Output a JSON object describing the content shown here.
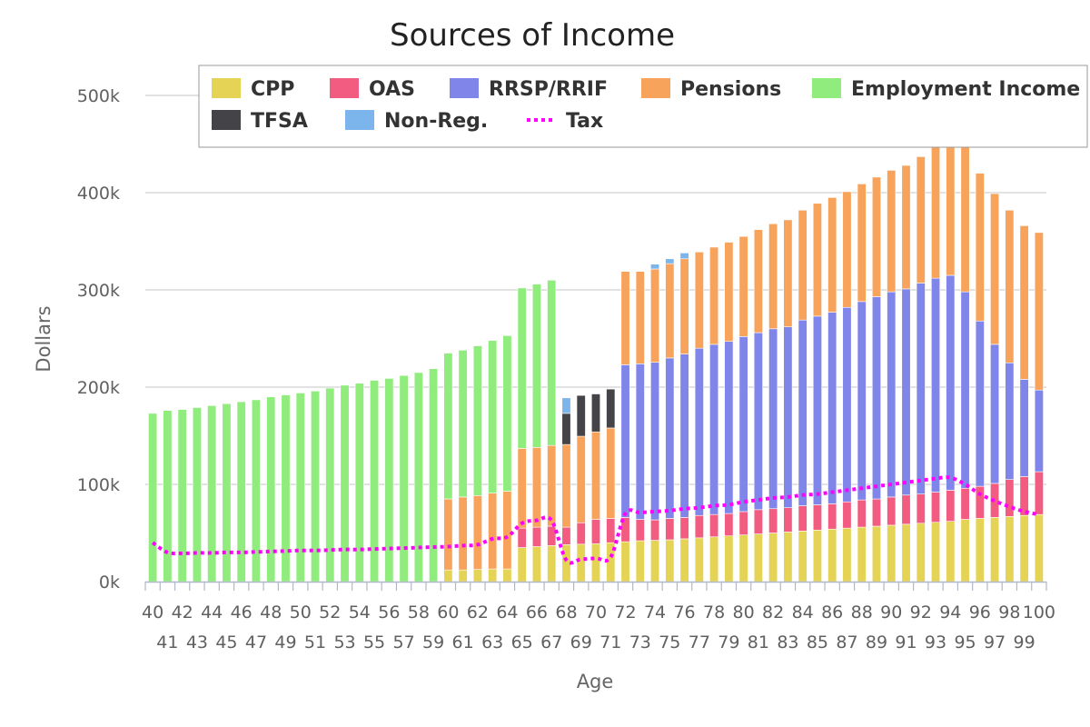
{
  "chart_data": {
    "type": "bar",
    "stacked": true,
    "title": "Sources of Income",
    "xlabel": "Age",
    "ylabel": "Dollars",
    "ylim": [
      0,
      500000
    ],
    "yticks": [
      0,
      100000,
      200000,
      300000,
      400000,
      500000
    ],
    "ytick_labels": [
      "0k",
      "100k",
      "200k",
      "300k",
      "400k",
      "500k"
    ],
    "grid": true,
    "legend_position": "top-right",
    "categories": [
      40,
      41,
      42,
      43,
      44,
      45,
      46,
      47,
      48,
      49,
      50,
      51,
      52,
      53,
      54,
      55,
      56,
      57,
      58,
      59,
      60,
      61,
      62,
      63,
      64,
      65,
      66,
      67,
      68,
      69,
      70,
      71,
      72,
      73,
      74,
      75,
      76,
      77,
      78,
      79,
      80,
      81,
      82,
      83,
      84,
      85,
      86,
      87,
      88,
      89,
      90,
      91,
      92,
      93,
      94,
      95,
      96,
      97,
      98,
      99,
      100
    ],
    "series": [
      {
        "name": "CPP",
        "color": "#e4d354",
        "values": [
          0,
          0,
          0,
          0,
          0,
          0,
          0,
          0,
          0,
          0,
          0,
          0,
          0,
          0,
          0,
          0,
          0,
          0,
          0,
          0,
          12000,
          12000,
          12500,
          13000,
          13000,
          35000,
          36000,
          37000,
          38000,
          38500,
          39000,
          40000,
          41000,
          42000,
          42500,
          43000,
          44000,
          45000,
          46000,
          47000,
          48000,
          49000,
          50000,
          51000,
          52000,
          53000,
          54000,
          55000,
          56000,
          57000,
          58000,
          59000,
          60000,
          61000,
          62000,
          64000,
          65000,
          66000,
          67000,
          68000,
          69000
        ]
      },
      {
        "name": "OAS",
        "color": "#f15c80",
        "values": [
          0,
          0,
          0,
          0,
          0,
          0,
          0,
          0,
          0,
          0,
          0,
          0,
          0,
          0,
          0,
          0,
          0,
          0,
          0,
          0,
          0,
          0,
          0,
          0,
          0,
          20000,
          20000,
          20000,
          18000,
          22000,
          25000,
          25000,
          25000,
          22000,
          21000,
          22000,
          22000,
          23000,
          23000,
          23000,
          24000,
          25000,
          25000,
          25000,
          26000,
          26000,
          26000,
          27000,
          28000,
          28000,
          29000,
          30000,
          30000,
          31000,
          32000,
          32000,
          33000,
          35000,
          38000,
          40000,
          44000
        ]
      },
      {
        "name": "RRSP/RRIF",
        "color": "#8085e9",
        "values": [
          0,
          0,
          0,
          0,
          0,
          0,
          0,
          0,
          0,
          0,
          0,
          0,
          0,
          0,
          0,
          0,
          0,
          0,
          0,
          0,
          0,
          0,
          0,
          0,
          0,
          0,
          0,
          0,
          0,
          0,
          0,
          0,
          157000,
          160000,
          162000,
          165000,
          168000,
          172000,
          175000,
          177000,
          180000,
          182000,
          185000,
          186000,
          191000,
          194000,
          197000,
          200000,
          204000,
          208000,
          211000,
          212000,
          217000,
          220000,
          221000,
          202000,
          170000,
          143000,
          120000,
          100000,
          84000
        ]
      },
      {
        "name": "Pensions",
        "color": "#f7a35c",
        "values": [
          0,
          0,
          0,
          0,
          0,
          0,
          0,
          0,
          0,
          0,
          0,
          0,
          0,
          0,
          0,
          0,
          0,
          0,
          0,
          0,
          73000,
          75000,
          76000,
          78000,
          80000,
          82000,
          82000,
          83000,
          85000,
          89000,
          90000,
          93000,
          96000,
          95000,
          96000,
          97000,
          98000,
          99000,
          100000,
          102000,
          103000,
          106000,
          108000,
          110000,
          113000,
          116000,
          118000,
          119000,
          121000,
          123000,
          125000,
          127000,
          130000,
          140000,
          145000,
          150000,
          152000,
          155000,
          157000,
          158000,
          162000
        ]
      },
      {
        "name": "Employment Income",
        "color": "#90ed7d",
        "values": [
          173000,
          176000,
          177000,
          179000,
          181000,
          183000,
          185000,
          187000,
          190000,
          192000,
          194000,
          196000,
          199000,
          202000,
          204000,
          207000,
          209000,
          212000,
          215000,
          219000,
          150000,
          151000,
          154000,
          157000,
          160000,
          165000,
          168000,
          170000,
          0,
          0,
          0,
          0,
          0,
          0,
          0,
          0,
          0,
          0,
          0,
          0,
          0,
          0,
          0,
          0,
          0,
          0,
          0,
          0,
          0,
          0,
          0,
          0,
          0,
          0,
          0,
          0,
          0,
          0,
          0,
          0,
          0
        ]
      },
      {
        "name": "TFSA",
        "color": "#434348",
        "values": [
          0,
          0,
          0,
          0,
          0,
          0,
          0,
          0,
          0,
          0,
          0,
          0,
          0,
          0,
          0,
          0,
          0,
          0,
          0,
          0,
          0,
          0,
          0,
          0,
          0,
          0,
          0,
          0,
          32000,
          42000,
          39000,
          40000,
          0,
          0,
          0,
          0,
          0,
          0,
          0,
          0,
          0,
          0,
          0,
          0,
          0,
          0,
          0,
          0,
          0,
          0,
          0,
          0,
          0,
          0,
          0,
          0,
          0,
          0,
          0,
          0,
          0
        ]
      },
      {
        "name": "Non-Reg.",
        "color": "#7cb5ec",
        "values": [
          0,
          0,
          0,
          0,
          0,
          0,
          0,
          0,
          0,
          0,
          0,
          0,
          0,
          0,
          0,
          0,
          0,
          0,
          0,
          0,
          0,
          0,
          0,
          0,
          0,
          0,
          0,
          0,
          16000,
          0,
          0,
          0,
          0,
          0,
          5000,
          5000,
          6000,
          0,
          0,
          0,
          0,
          0,
          0,
          0,
          0,
          0,
          0,
          0,
          0,
          0,
          0,
          0,
          0,
          0,
          0,
          0,
          0,
          0,
          0,
          0,
          0
        ]
      }
    ],
    "line_series": {
      "name": "Tax",
      "color": "#ff00ff",
      "style": "dotted",
      "values": [
        40000,
        30000,
        29000,
        29500,
        29500,
        30000,
        30000,
        30500,
        31000,
        31500,
        32000,
        32000,
        32500,
        33000,
        33000,
        33500,
        34000,
        34500,
        35000,
        35500,
        36000,
        37000,
        38000,
        44000,
        46000,
        60000,
        63000,
        63000,
        22000,
        23000,
        24000,
        25000,
        70000,
        71000,
        72000,
        73000,
        75000,
        76000,
        78000,
        79000,
        82000,
        84000,
        86000,
        87000,
        89000,
        90000,
        92000,
        94000,
        96000,
        98000,
        100000,
        102000,
        104000,
        106000,
        107000,
        100000,
        90000,
        83000,
        77000,
        72000,
        69000
      ]
    }
  }
}
